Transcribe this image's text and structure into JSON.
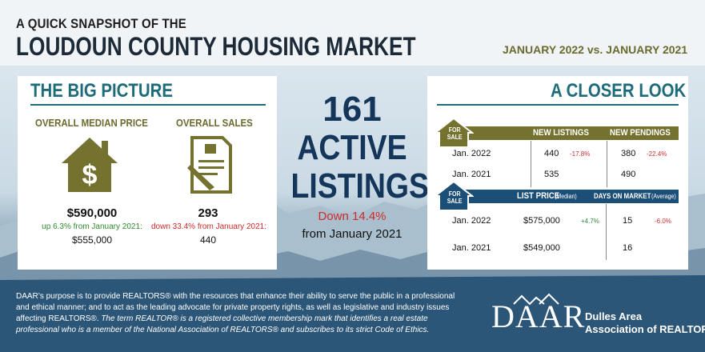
{
  "header": {
    "small": "A QUICK SNAPSHOT OF THE",
    "big": "LOUDOUN COUNTY HOUSING MARKET",
    "date": "JANUARY  2022 vs. JANUARY  2021"
  },
  "big_picture": {
    "title": "THE BIG PICTURE",
    "median_label": "OVERALL MEDIAN PRICE",
    "sales_label": "OVERALL SALES",
    "median_value": "$590,000",
    "median_change": "up 6.3% from January 2021:",
    "median_prev": "$555,000",
    "sales_value": "293",
    "sales_change": "down 33.4% from January 2021:",
    "sales_prev": "440",
    "house_icon": "house-dollar-icon",
    "doc_icon": "contract-document-icon"
  },
  "center": {
    "number": "161",
    "line1": "ACTIVE",
    "line2": "LISTINGS",
    "down": "Down 14.4%",
    "from": "from January 2021"
  },
  "closer_look": {
    "title": "A CLOSER LOOK",
    "for_sale_1": "FOR SALE",
    "for_sale_2": "FOR SALE",
    "new_listings_hdr": "NEW LISTINGS",
    "new_pendings_hdr": "NEW PENDINGS",
    "row1_label": "Jan. 2022",
    "row1_listings": "440",
    "row1_listings_chg": "-17.8%",
    "row1_pendings": "380",
    "row1_pendings_chg": "-22.4%",
    "row2_label": "Jan. 2021",
    "row2_listings": "535",
    "row2_pendings": "490",
    "list_price_hdr": "LIST PRICE",
    "list_price_sub": "(Median)",
    "dom_hdr": "DAYS ON MARKET",
    "dom_sub": "(Average)",
    "row3_label": "Jan. 2022",
    "row3_price": "$575,000",
    "row3_price_chg": "+4.7%",
    "row3_dom": "15",
    "row3_dom_chg": "-6.0%",
    "row4_label": "Jan. 2021",
    "row4_price": "$549,000",
    "row4_dom": "16"
  },
  "footer": {
    "p1": "DAAR’s purpose is to provide REALTORS® with the resources that enhance their ability to serve the public in a professional and ethical manner; and to act as the leading advocate for private property rights, as well as legislative and industry issues affecting REALTORS®.",
    "p2": "The term REALTOR® is a registered collective membership mark that identifies a real estate professional who is a member of the National Association of REALTORS® and subscribes to its strict Code of Ethics.",
    "logo": "DAAR",
    "org1": "Dulles Area",
    "org2": "Association of REALTORS®"
  },
  "colors": {
    "teal": "#1e6b7a",
    "olive": "#74722e",
    "navy": "#14365a",
    "blue_bar": "#1b4f78",
    "red": "#d12a2a",
    "green": "#2f8a2f"
  }
}
